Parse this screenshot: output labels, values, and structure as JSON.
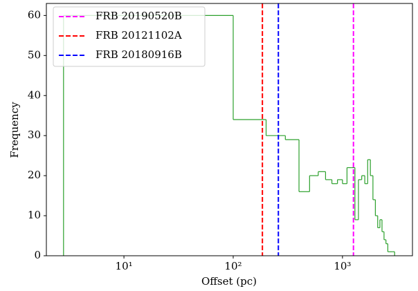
{
  "chart_data": {
    "type": "histogram",
    "x_label": "Offset (pc)",
    "y_label": "Frequency",
    "log_x": true,
    "color": "#2ca02c",
    "legend": "upper left",
    "bins": [
      2.8,
      100,
      200,
      300,
      400,
      500,
      600,
      700,
      800,
      900,
      1000,
      1100,
      1200,
      1300,
      1400,
      1500,
      1600,
      1700,
      1800,
      1900,
      2000,
      2100,
      2200,
      2300,
      2400,
      2500,
      2600,
      2700,
      2800,
      2900,
      3000
    ],
    "values": [
      60,
      34,
      30,
      29,
      16,
      20,
      21,
      19,
      18,
      19,
      18,
      22,
      22,
      9,
      19,
      20,
      18,
      24,
      20,
      14,
      10,
      7,
      9,
      6,
      4,
      3,
      1,
      1,
      1,
      1
    ],
    "vlines": [
      {
        "name": "FRB 20190520B",
        "color": "#ff00ff",
        "x": 1260
      },
      {
        "name": "FRB 20121102A",
        "color": "#ff0000",
        "x": 185
      },
      {
        "name": "FRB 20180916B",
        "color": "#0000ff",
        "x": 259
      }
    ],
    "xlim": [
      1.95,
      4370
    ],
    "ylim": [
      0,
      63
    ],
    "xticks": [
      {
        "value": 10,
        "label": "10¹"
      },
      {
        "value": 100,
        "label": "10²"
      },
      {
        "value": 1000,
        "label": "10³"
      }
    ],
    "yticks": [
      0,
      10,
      20,
      30,
      40,
      50,
      60
    ]
  }
}
